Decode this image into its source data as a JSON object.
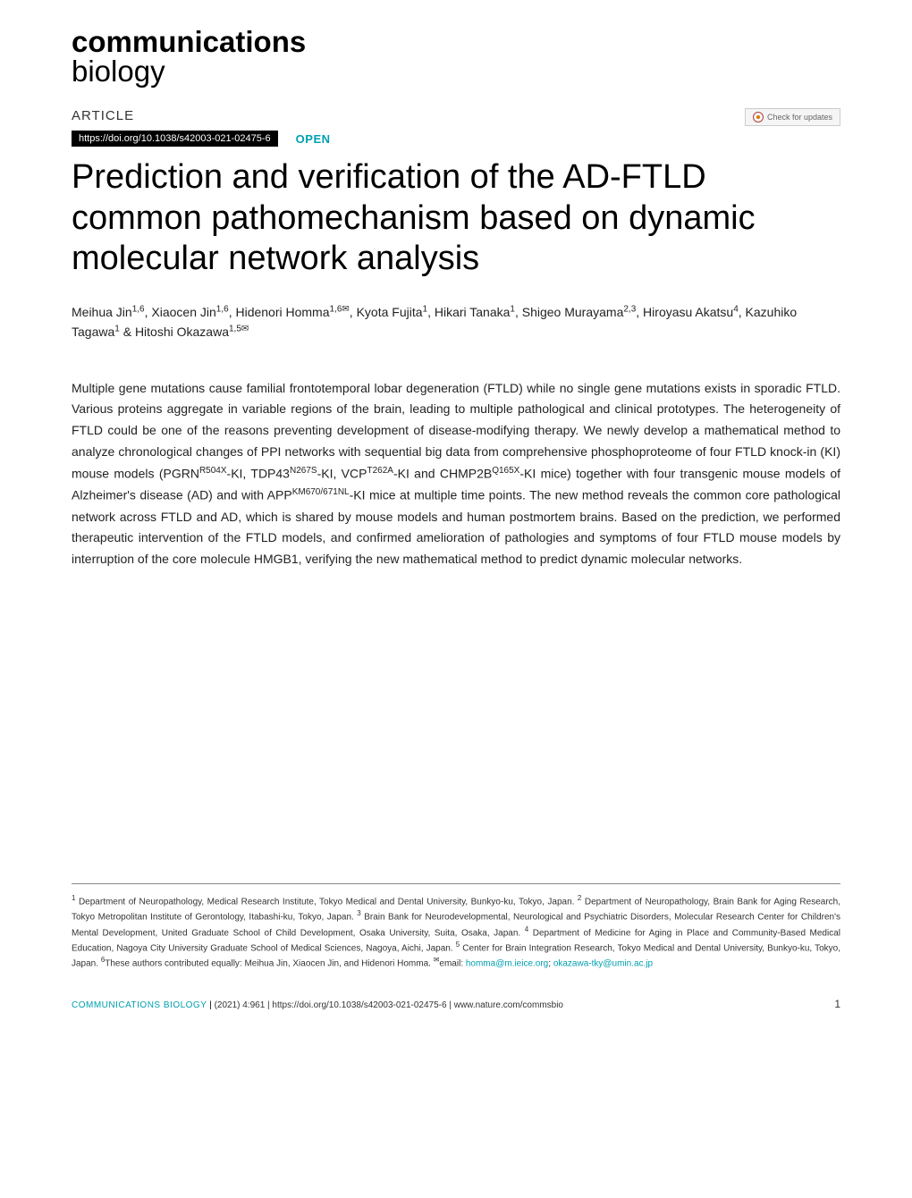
{
  "journal": {
    "name": "communications",
    "sub": "biology"
  },
  "header": {
    "article_label": "ARTICLE",
    "check_updates": "Check for updates",
    "doi": "https://doi.org/10.1038/s42003-021-02475-6",
    "open_label": "OPEN"
  },
  "title": "Prediction and verification of the AD-FTLD common pathomechanism based on dynamic molecular network analysis",
  "authors_html": "Meihua Jin<sup>1,6</sup>, Xiaocen Jin<sup>1,6</sup>, Hidenori Homma<sup>1,6✉</sup>, Kyota Fujita<sup>1</sup>, Hikari Tanaka<sup>1</sup>, Shigeo Murayama<sup>2,3</sup>, Hiroyasu Akatsu<sup>4</sup>, Kazuhiko Tagawa<sup>1</sup> & Hitoshi Okazawa<sup>1,5✉</sup>",
  "abstract_html": "Multiple gene mutations cause familial frontotemporal lobar degeneration (FTLD) while no single gene mutations exists in sporadic FTLD. Various proteins aggregate in variable regions of the brain, leading to multiple pathological and clinical prototypes. The heterogeneity of FTLD could be one of the reasons preventing development of disease-modifying therapy. We newly develop a mathematical method to analyze chronological changes of PPI networks with sequential big data from comprehensive phosphoproteome of four FTLD knock-in (KI) mouse models (PGRN<sup>R504X</sup>-KI, TDP43<sup>N267S</sup>-KI, VCP<sup>T262A</sup>-KI and CHMP2B<sup>Q165X</sup>-KI mice) together with four transgenic mouse models of Alzheimer's disease (AD) and with APP<sup>KM670/671NL</sup>-KI mice at multiple time points. The new method reveals the common core pathological network across FTLD and AD, which is shared by mouse models and human postmortem brains. Based on the prediction, we performed therapeutic intervention of the FTLD models, and confirmed amelioration of pathologies and symptoms of four FTLD mouse models by interruption of the core molecule HMGB1, verifying the new mathematical method to predict dynamic molecular networks.",
  "affiliations_html": "<sup>1</sup> Department of Neuropathology, Medical Research Institute, Tokyo Medical and Dental University, Bunkyo-ku, Tokyo, Japan. <sup>2</sup> Department of Neuropathology, Brain Bank for Aging Research, Tokyo Metropolitan Institute of Gerontology, Itabashi-ku, Tokyo, Japan. <sup>3</sup> Brain Bank for Neurodevelopmental, Neurological and Psychiatric Disorders, Molecular Research Center for Children's Mental Development, United Graduate School of Child Development, Osaka University, Suita, Osaka, Japan. <sup>4</sup> Department of Medicine for Aging in Place and Community-Based Medical Education, Nagoya City University Graduate School of Medical Sciences, Nagoya, Aichi, Japan. <sup>5</sup> Center for Brain Integration Research, Tokyo Medical and Dental University, Bunkyo-ku, Tokyo, Japan. <sup>6</sup>These authors contributed equally: Meihua Jin, Xiaocen Jin, and Hidenori Homma. <sup>✉</sup>email: <span class=\"email-link\">homma@m.ieice.org</span>; <span class=\"email-link\">okazawa-tky@umin.ac.jp</span>",
  "footer": {
    "journal": "COMMUNICATIONS BIOLOGY",
    "citation": "(2021) 4:961 | https://doi.org/10.1038/s42003-021-02475-6 | www.nature.com/commsbio",
    "page": "1"
  }
}
